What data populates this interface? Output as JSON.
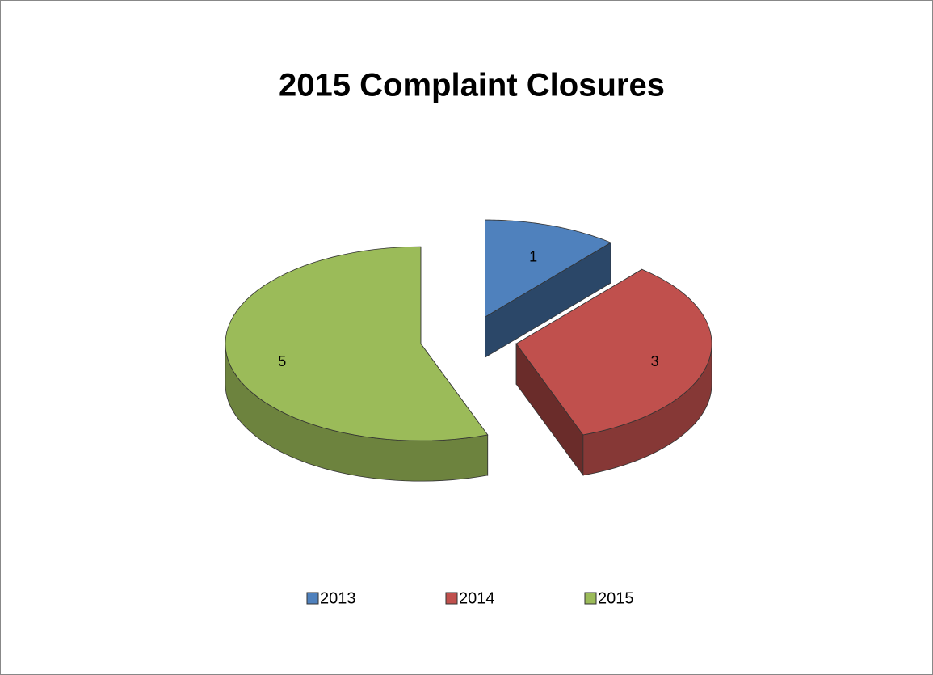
{
  "chart_data": {
    "type": "pie",
    "title": "2015 Complaint Closures",
    "categories": [
      "2013",
      "2014",
      "2015"
    ],
    "values": [
      1,
      3,
      5
    ],
    "colors": [
      "#4f81bd",
      "#c0504d",
      "#9bbb59"
    ],
    "legend": "bottom"
  }
}
